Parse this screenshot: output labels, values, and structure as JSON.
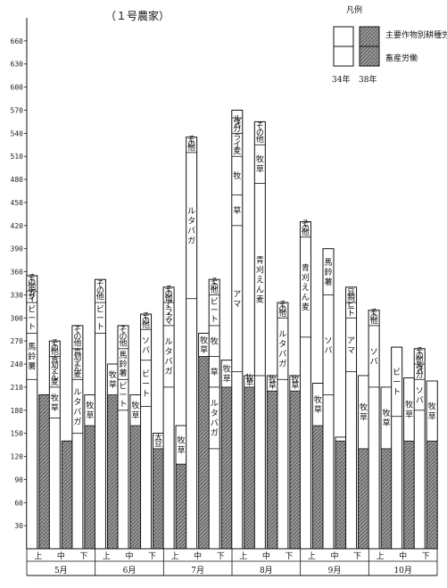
{
  "chart_data": {
    "type": "bar",
    "title": "（１号農家）",
    "y_ticks": [
      30,
      60,
      90,
      120,
      150,
      180,
      210,
      240,
      270,
      300,
      330,
      360,
      390,
      420,
      450,
      480,
      510,
      540,
      570,
      600,
      630,
      660
    ],
    "ylim": [
      0,
      690
    ],
    "months": [
      "5月",
      "6月",
      "7月",
      "8月",
      "9月",
      "10月"
    ],
    "periods": [
      "上",
      "中",
      "下"
    ],
    "legend": {
      "title": "凡例",
      "main_label": "主要作物別耕種労働",
      "sub_label": "畜産労働",
      "year_left": "34年",
      "year_right": "38年"
    },
    "series": [
      {
        "name": "34年",
        "label": "34年",
        "values": [
          355,
          270,
          290,
          350,
          290,
          305,
          340,
          535,
          350,
          570,
          555,
          320,
          425,
          390,
          340,
          310,
          262,
          260
        ]
      },
      {
        "name": "38年",
        "label": "38年",
        "values": [
          200,
          140,
          200,
          240,
          200,
          150,
          160,
          280,
          245,
          225,
          225,
          225,
          215,
          145,
          225,
          210,
          222,
          218
        ]
      }
    ],
    "bars": [
      {
        "segments": [
          {
            "label": "その他",
            "v": 20
          },
          {
            "label": "テンサイ",
            "v": 15
          },
          {
            "label": "ビート",
            "v": 40
          },
          {
            "label": "馬鈴薯",
            "v": 60
          }
        ],
        "livestock_label": "",
        "livestock_span": [
          0,
          0
        ]
      },
      {
        "segments": [
          {
            "label": "その他",
            "v": 20
          },
          {
            "label": "青刈えん麦",
            "v": 40
          },
          {
            "label": "牧草",
            "v": 40
          }
        ],
        "livestock_label": "",
        "livestock_span": [
          0,
          0
        ]
      },
      {
        "segments": [
          {
            "label": "その他",
            "v": 30
          },
          {
            "label": "青刈えん麦",
            "v": 40
          },
          {
            "label": "ルタバガ",
            "v": 70
          }
        ],
        "livestock_label": "牧草",
        "livestock_span": [
          160,
          200
        ]
      },
      {
        "segments": [
          {
            "label": "その他",
            "v": 30
          },
          {
            "label": "ビート",
            "v": 40
          }
        ],
        "livestock_label": "牧草",
        "livestock_span": [
          200,
          240
        ]
      },
      {
        "segments": [
          {
            "label": "その他",
            "v": 30
          },
          {
            "label": "馬鈴薯",
            "v": 40
          },
          {
            "label": "ビート",
            "v": 40
          }
        ],
        "livestock_label": "牧草",
        "livestock_span": [
          160,
          200
        ]
      },
      {
        "segments": [
          {
            "label": "その他",
            "v": 20
          },
          {
            "label": "ソバ",
            "v": 40
          },
          {
            "label": "ビート",
            "v": 60
          }
        ],
        "livestock_label": "大豆",
        "livestock_span": [
          130,
          150
        ]
      },
      {
        "segments": [
          {
            "label": "その他",
            "v": 20
          },
          {
            "label": "ア・ラ・アマ",
            "v": 30
          },
          {
            "label": "ルタバガ",
            "v": 80
          }
        ],
        "livestock_label": "牧草",
        "livestock_span": [
          110,
          160
        ]
      },
      {
        "segments": [
          {
            "label": "その他",
            "v": 20
          },
          {
            "label": "ルタバガ",
            "v": 190
          }
        ],
        "livestock_label": "牧草",
        "livestock_span": [
          250,
          280
        ]
      },
      {
        "segments": [
          {
            "label": "その他",
            "v": 20
          },
          {
            "label": "ビート",
            "v": 40
          },
          {
            "label": "牧",
            "v": 40
          },
          {
            "label": "草",
            "v": 40
          },
          {
            "label": "ルタバガ",
            "v": 80
          }
        ],
        "livestock_label": "牧草",
        "livestock_span": [
          210,
          245
        ]
      },
      {
        "segments": [
          {
            "label": "その他",
            "v": 10
          },
          {
            "label": "ルタバガ",
            "v": 20
          },
          {
            "label": "ライ麦",
            "v": 30
          },
          {
            "label": "牧",
            "v": 50
          },
          {
            "label": "草",
            "v": 40
          },
          {
            "label": "アマ",
            "v": 190
          }
        ],
        "livestock_label": "牧草",
        "livestock_span": [
          210,
          225
        ]
      },
      {
        "segments": [
          {
            "label": "その他",
            "v": 30
          },
          {
            "label": "牧草",
            "v": 50
          },
          {
            "label": "青刈えん麦",
            "v": 250
          }
        ],
        "livestock_label": "牧草",
        "livestock_span": [
          205,
          225
        ]
      },
      {
        "segments": [
          {
            "label": "その他",
            "v": 20
          },
          {
            "label": "ルタバガ",
            "v": 80
          }
        ],
        "livestock_label": "牧草",
        "livestock_span": [
          205,
          225
        ]
      },
      {
        "segments": [
          {
            "label": "その他",
            "v": 20
          },
          {
            "label": "青刈えん麦",
            "v": 130
          }
        ],
        "livestock_label": "牧草",
        "livestock_span": [
          160,
          215
        ]
      },
      {
        "segments": [
          {
            "label": "馬鈴薯",
            "v": 60
          },
          {
            "label": "ソバ",
            "v": 130
          }
        ],
        "livestock_label": "牧草",
        "livestock_span": [
          140,
          145
        ]
      },
      {
        "segments": [
          {
            "label": "豆類",
            "v": 20
          },
          {
            "label": "ビート",
            "v": 20
          },
          {
            "label": "アマ",
            "v": 70
          }
        ],
        "livestock_label": "牧草",
        "livestock_span": [
          130,
          225
        ]
      },
      {
        "segments": [
          {
            "label": "その他",
            "v": 20
          },
          {
            "label": "ソバ",
            "v": 80
          }
        ],
        "livestock_label": "牧草",
        "livestock_span": [
          130,
          210
        ]
      },
      {
        "segments": [
          {
            "label": "ビート",
            "v": 90
          }
        ],
        "livestock_label": "牧草",
        "livestock_span": [
          140,
          222
        ]
      },
      {
        "segments": [
          {
            "label": "その他",
            "v": 20
          },
          {
            "label": "ルタバガ",
            "v": 20
          },
          {
            "label": "ソバ",
            "v": 40
          }
        ],
        "livestock_label": "牧草",
        "livestock_span": [
          140,
          218
        ]
      }
    ]
  }
}
